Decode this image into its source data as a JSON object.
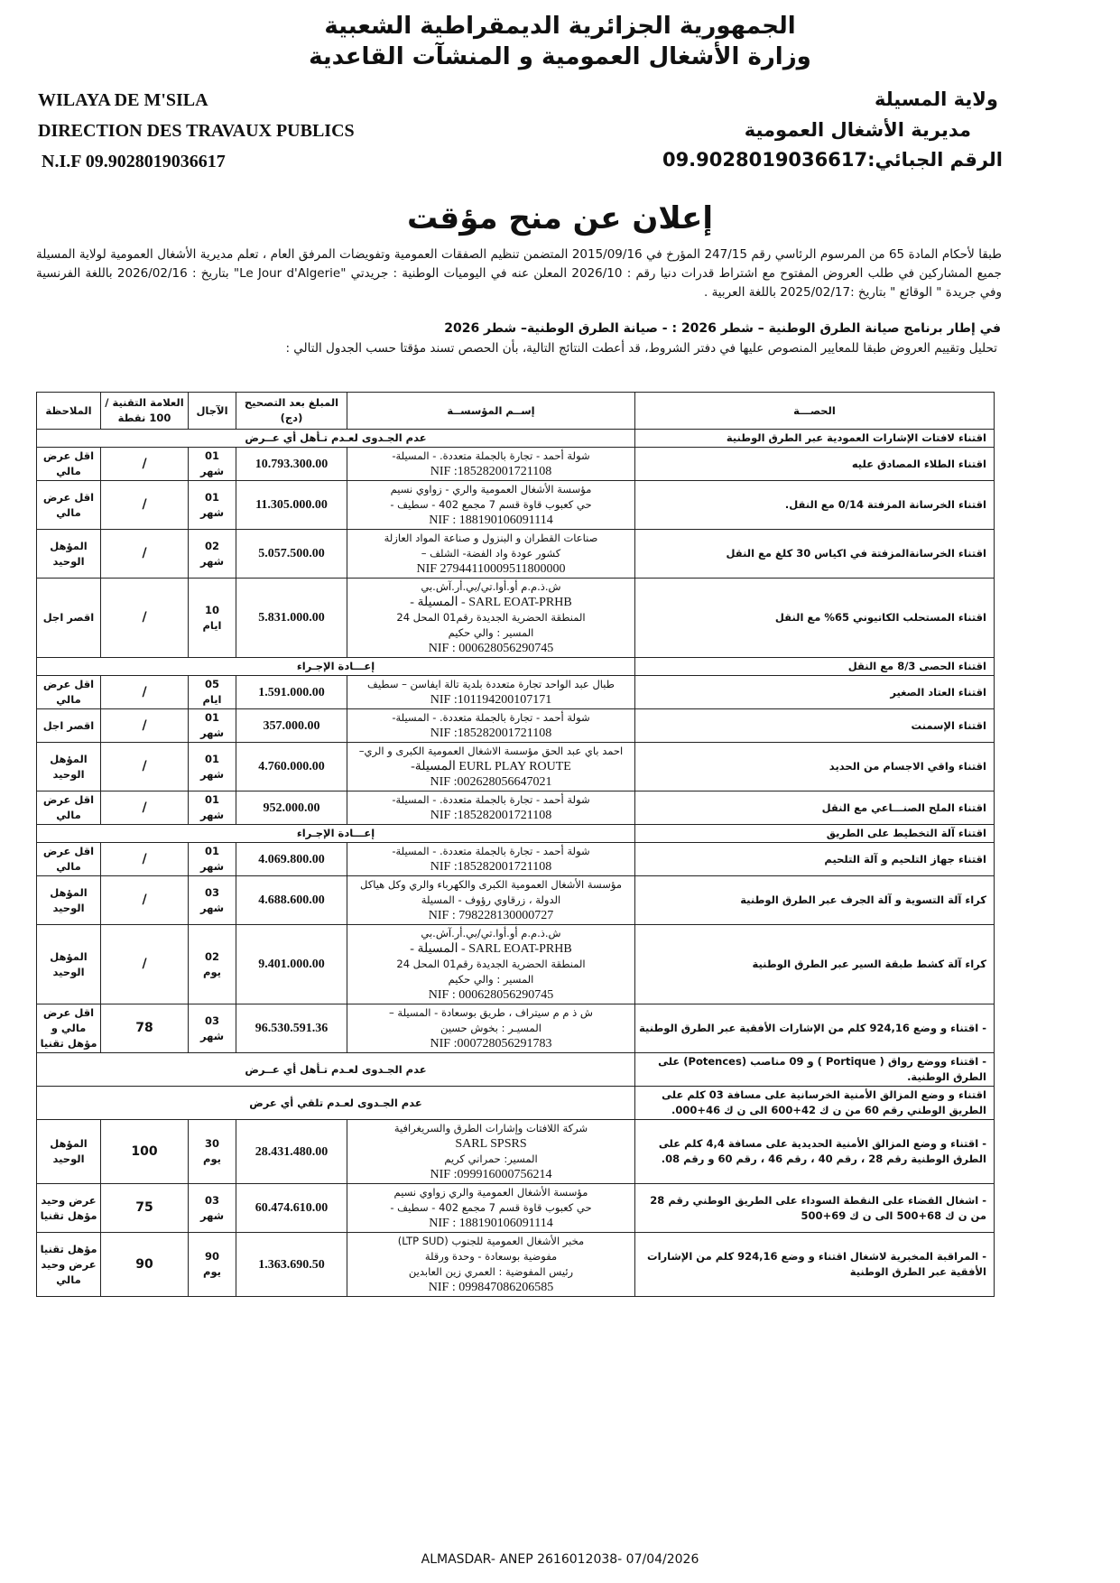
{
  "header": {
    "country_ar": "الجمهورية الجزائرية الديمقراطية الشعبية",
    "ministry_ar": "وزارة الأشغال العمومية و المنشآت القاعدية",
    "wilaya_fr": "WILAYA DE M'SILA",
    "direction_fr": "DIRECTION DES TRAVAUX PUBLICS",
    "nif_fr": "N.I.F 09.9028019036617",
    "wilaya_ar": "ولاية المسيلة",
    "direction_ar": "مديرية الأشغال العمومية",
    "nif_ar": "الرقم الجبائي:09.9028019036617"
  },
  "title": "إعلان عن منح مؤقت",
  "intro": "طبقا لأحكام المادة 65 من المرسوم الرئاسي رقم 247/15 المؤرخ في 2015/09/16 المتضمن تنظيم الصفقات العمومية وتفويضات المرفق العام ، تعلم مديرية الأشغال العمومية لولاية المسيلة جميع المشاركين في طلب العروض المفتوح مع اشتراط قدرات دنيا رقم : 2026/10 المعلن عنه في اليوميات الوطنية : جريدتي \"Le Jour d'Algerie\" بتاريخ : 2026/02/16 باللغة الفرنسية وفي جريدة \" الوقائع \" بتاريخ :2025/02/17 باللغة العربية .",
  "program": "في إطار برنامج صيانة الطرق الوطنية – شطر 2026 : - صيانة الطرق الوطنية– شطر 2026",
  "evaluation": "تحليل وتقييم العروض طبقا للمعايير المنصوص عليها في دفتر الشروط، قد أعطت النتائج التالية، بأن الحصص تسند مؤقتا حسب الجدول التالي :",
  "table": {
    "headers": {
      "lot": "الحصـــة",
      "company": "إســم المؤسســة",
      "amount": "المبلغ بعد التصحيح (دج)",
      "duration": "الآجال",
      "mark": "العلامة التقنية / 100 نقطة",
      "note": "الملاحظة"
    },
    "rows": [
      {
        "lot": "اقتناء لافتات الإشارات العمودية عبر الطرق الوطنية",
        "merged": "عدم الجـدوى لعـدم تـأهل أي عــرض"
      },
      {
        "lot": "اقتناء الطلاء المصادق عليه",
        "company": [
          "شولة أحمد - تجارة بالجملة متعددة. - المسيلة-",
          "NIF :185282001721108"
        ],
        "amount": "10.793.300.00",
        "duration": [
          "01",
          "شهر"
        ],
        "mark": "/",
        "note": "اقل عرض مالي"
      },
      {
        "lot": "اقتناء الخرسانة المزفتة 0/14 مع النقل.",
        "company": [
          "مؤسسة الأشغال العمومية والري - زواوي نسيم",
          "حي كعبوب قاوة قسم 7 مجمع 402 - سطيف -",
          "NIF : 188190106091114"
        ],
        "amount": "11.305.000.00",
        "duration": [
          "01",
          "شهر"
        ],
        "mark": "/",
        "note": "اقل عرض مالي"
      },
      {
        "lot": "اقتناء الخرسانةالمزفتة في اكياس 30 كلغ مع النقل",
        "company": [
          "صناعات القطران و البنزول و صناعة المواد العازلة",
          "كشور عودة واد الفضة- الشلف –",
          "NIF 27944110009511800000"
        ],
        "amount": "5.057.500.00",
        "duration": [
          "02",
          "شهر"
        ],
        "mark": "/",
        "note": "المؤهل الوحيد"
      },
      {
        "lot": "اقتناء المستحلب الكاتيوني 65% مع النقل",
        "company": [
          "ش.ذ.م.م أو.أوا.تي/بي.أر.آش.بي",
          "SARL EOAT-PRHB - المسيلة -",
          "المنطقة الحضرية الجديدة رقم01 المحل 24",
          "المسير : والي حكيم",
          "NIF : 000628056290745"
        ],
        "amount": "5.831.000.00",
        "duration": [
          "10",
          "ايام"
        ],
        "mark": "/",
        "note": "اقصر اجل"
      },
      {
        "lot": "اقتناء الحصى 8/3 مع النقل",
        "merged": "إعـــادة الإجـراء"
      },
      {
        "lot": "اقتناء العتاد الصغير",
        "company": [
          "طبال عبد الواحد تجارة متعددة بلدية تالة ايفاسن – سطيف",
          "NIF :101194200107171"
        ],
        "amount": "1.591.000.00",
        "duration": [
          "05",
          "ايام"
        ],
        "mark": "/",
        "note": "اقل عرض مالي"
      },
      {
        "lot": "اقتناء الإسمنت",
        "company": [
          "شولة أحمد - تجارة بالجملة متعددة. - المسيلة-",
          "NIF :185282001721108"
        ],
        "amount": "357.000.00",
        "duration": [
          "01",
          "شهر"
        ],
        "mark": "/",
        "note": "اقصر اجل"
      },
      {
        "lot": "اقتناء واقي الاجسام من الحديد",
        "company": [
          "احمد باي عبد الحق مؤسسة الاشغال العمومية الكبرى و الري–",
          "EURL PLAY ROUTE المسيلة-",
          "NIF :002628056647021"
        ],
        "amount": "4.760.000.00",
        "duration": [
          "01",
          "شهر"
        ],
        "mark": "/",
        "note": "المؤهل الوحيد"
      },
      {
        "lot": "اقتناء الملح الصنـــاعي مع النقل",
        "company": [
          "شولة أحمد - تجارة بالجملة متعددة. - المسيلة-",
          "NIF :185282001721108"
        ],
        "amount": "952.000.00",
        "duration": [
          "01",
          "شهر"
        ],
        "mark": "/",
        "note": "اقل عرض مالي"
      },
      {
        "lot": "اقتناء آلة التخطيط على الطريق",
        "merged": "إعـــادة الإجـراء"
      },
      {
        "lot": "اقتناء جهاز التلحيم و آلة التلحيم",
        "company": [
          "شولة أحمد - تجارة بالجملة متعددة. - المسيلة-",
          "NIF :185282001721108"
        ],
        "amount": "4.069.800.00",
        "duration": [
          "01",
          "شهر"
        ],
        "mark": "/",
        "note": "اقل عرض مالي"
      },
      {
        "lot": "كراء آلة التسوية و آلة الجرف عبر الطرق الوطنية",
        "company": [
          "مؤسسة الأشغال العمومية الكبرى والكهرباء والري وكل هياكل",
          "الدولة ، زرقاوي رؤوف - المسيلة",
          "NIF : 798228130000727"
        ],
        "amount": "4.688.600.00",
        "duration": [
          "03",
          "شهر"
        ],
        "mark": "/",
        "note": "المؤهل الوحيد"
      },
      {
        "lot": "كراء آلة كشط طبقة السير عبر الطرق الوطنية",
        "company": [
          "ش.ذ.م.م أو.أوا.تي/بي.أر.آش.بي",
          "SARL EOAT-PRHB - المسيلة -",
          "المنطقة الحضرية الجديدة رقم01 المحل 24",
          "المسير : والي حكيم",
          "NIF : 000628056290745"
        ],
        "amount": "9.401.000.00",
        "duration": [
          "02",
          "يوم"
        ],
        "mark": "/",
        "note": "المؤهل الوحيد"
      },
      {
        "lot": "- اقتناء و وضع 924,16 كلم من الإشارات الأفقية عبر الطرق الوطنية",
        "company": [
          "ش ذ م م سيتراف ، طريق بوسعادة - المسيلة –",
          "المسيـر : بخوش حسين",
          "NIF :000728056291783"
        ],
        "amount": "96.530.591.36",
        "duration": [
          "03",
          "شهر"
        ],
        "mark": "78",
        "note": "اقل عرض مالي و مؤهل تقنيا"
      },
      {
        "lot": "- اقتناء ووضع رواق ( Portique ) و 09 مناصب (Potences) على الطرق الوطنية.",
        "merged": "عدم الجـدوى لعـدم تـأهل أي عــرض"
      },
      {
        "lot": "اقتناء و وضع المزالق الأمنية الخرسانية على مسافة 03 كلم على الطريق الوطني رقم 60 من ن ك 42+600 الى ن ك 46+000.",
        "merged": "عدم الجـدوى لعـدم تلقي أي عرض"
      },
      {
        "lot": "- اقتناء و وضع المزالق الأمنية الحديدية على مسافة 4,4 كلم على الطرق الوطنية رقم 28 ، رقم 40 ، رقم 46 ، رقم 60 و رقم 08.",
        "company": [
          "شركة اللافتات وإشارات الطرق والسريغرافية",
          "SARL SPSRS",
          "المسير: حمراني كريم",
          "NIF :099916000756214"
        ],
        "amount": "28.431.480.00",
        "duration": [
          "30",
          "يوم"
        ],
        "mark": "100",
        "note": "المؤهل الوحيد"
      },
      {
        "lot": "- اشغال القضاء على النقطة السوداء على الطريق الوطني رقم 28 من ن ك 68+500 الى ن ك 69+500",
        "company": [
          "مؤسسة الأشغال العمومية والري زواوي نسيم",
          "حي كعبوب قاوة قسم 7 مجمع 402 - سطيف -",
          "NIF : 188190106091114"
        ],
        "amount": "60.474.610.00",
        "duration": [
          "03",
          "شهر"
        ],
        "mark": "75",
        "note": "عرض وحيد مؤهل تقنيا"
      },
      {
        "lot": "- المراقبة المخبرية لاشغال اقتناء و وضع 924,16 كلم من الإشارات الأفقية عبر الطرق الوطنية",
        "company": [
          "مخبر الأشغال العمومية للجنوب (LTP SUD)",
          "مفوضية بوسعادة - وحدة ورقلة",
          "رئيس المفوضية : العمري زين العابدين",
          "NIF : 099847086206585"
        ],
        "amount": "1.363.690.50",
        "duration": [
          "90",
          "يوم"
        ],
        "mark": "90",
        "note": "مؤهل تقنيا عرض وحيد مالي"
      }
    ]
  },
  "footer": "ALMASDAR- ANEP 2616012038- 07/04/2026"
}
